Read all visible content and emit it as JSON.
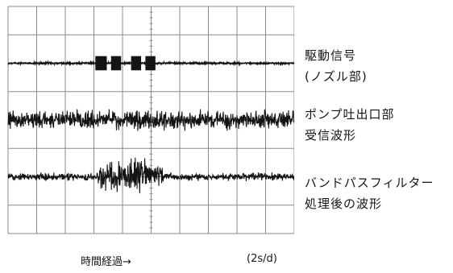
{
  "chart_data": {
    "type": "line",
    "title": "",
    "xlabel": "時間経過→",
    "xunit": "(2s/d)",
    "ylabel": "",
    "grid": true,
    "series": [
      {
        "name": "駆動信号 (ノズル部)",
        "label_lines": [
          "駆動信号",
          "(ノズル部)"
        ],
        "baseline_div": 2.0,
        "noise_amplitude_div": 0.04,
        "pulses": [
          {
            "x_start_div": 3.05,
            "x_end_div": 3.45,
            "height_div": 0.5
          },
          {
            "x_start_div": 3.6,
            "x_end_div": 3.95,
            "height_div": 0.5
          },
          {
            "x_start_div": 4.3,
            "x_end_div": 4.65,
            "height_div": 0.5
          },
          {
            "x_start_div": 4.8,
            "x_end_div": 5.15,
            "height_div": 0.5
          }
        ]
      },
      {
        "name": "ポンプ吐出口部 受信波形",
        "label_lines": [
          "ポンプ吐出口部",
          "受信波形"
        ],
        "baseline_div": 4.0,
        "noise_amplitude_div": 0.45
      },
      {
        "name": "バンドパスフィルター 処理後の波形",
        "label_lines": [
          "バンドパスフィルター",
          "処理後の波形"
        ],
        "baseline_div": 6.0,
        "noise_amplitude_div": 0.18,
        "bursts": [
          {
            "x_start_div": 3.05,
            "x_end_div": 5.5,
            "amplitude_div": 0.9
          }
        ]
      }
    ],
    "x_divisions": 10,
    "y_divisions": 8
  },
  "colors": {
    "grid": "#8a8a8a",
    "trace": "#141414",
    "background": "#ffffff"
  }
}
